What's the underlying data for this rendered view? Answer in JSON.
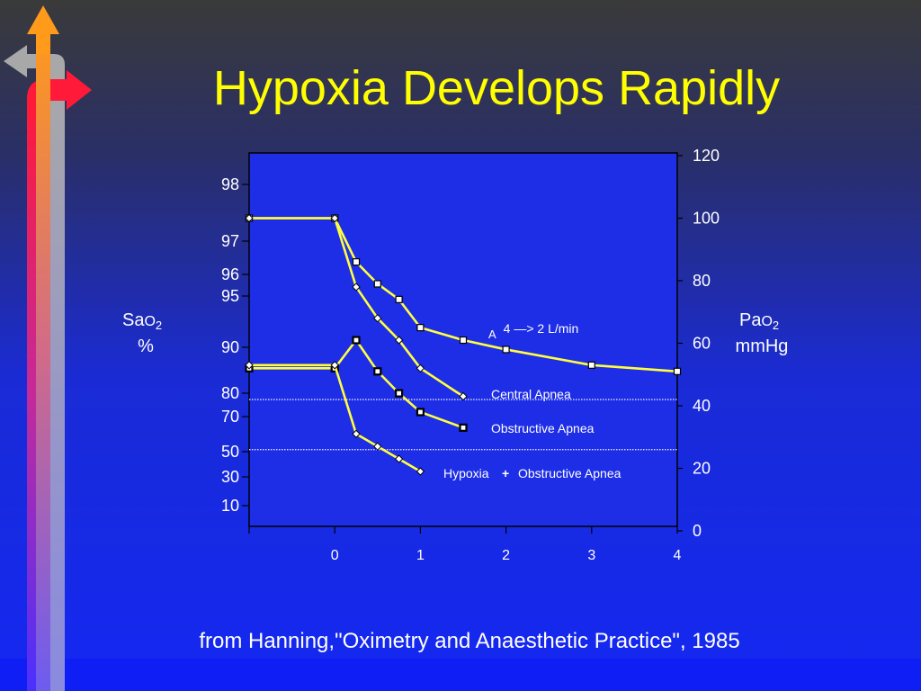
{
  "slide": {
    "title": "Hypoxia Develops Rapidly",
    "source": "from Hanning,\"Oximetry and Anaesthetic Practice\", 1985"
  },
  "colors": {
    "line": "#ffff40",
    "title": "#ffff00",
    "text": "#ffffff",
    "plot_bg": "#1e2ee6"
  },
  "chart_data": {
    "type": "line",
    "x_ticks": [
      "0",
      "1",
      "2",
      "3",
      "4"
    ],
    "x_range": [
      -1,
      4
    ],
    "left_axis": {
      "label_main": "Sa",
      "label_chem": "O",
      "label_sub": "2",
      "label_unit": "%",
      "ticks": [
        "98",
        "97",
        "96",
        "95",
        "90",
        "80",
        "70",
        "50",
        "30",
        "10"
      ]
    },
    "right_axis": {
      "label_main": "Pa",
      "label_chem": "O",
      "label_sub": "2",
      "label_unit": "mmHg",
      "range": [
        0,
        120
      ],
      "ticks": [
        "0",
        "20",
        "40",
        "60",
        "80",
        "100",
        "120"
      ]
    },
    "reference_lines": [
      42,
      26
    ],
    "annotations": {
      "ventilation_symbol": "",
      "ventilation_sub": "A",
      "ventilation_text": "4 —> 2 L/min",
      "central": "Central Apnea",
      "obstructive": "Obstructive Apnea",
      "hypoxia": "Hypoxia",
      "plus": "+",
      "hypoxia_obstructive": "Obstructive Apnea"
    },
    "series": [
      {
        "marker": "square",
        "x": [
          -1,
          0,
          0.25,
          0.5,
          0.75,
          1,
          1.5,
          2,
          3,
          4
        ],
        "y": [
          100,
          100,
          86,
          79,
          74,
          65,
          61,
          58,
          53,
          51
        ]
      },
      {
        "marker": "diamond",
        "x": [
          -1,
          0,
          0.25,
          0.5,
          0.75,
          1,
          1.5
        ],
        "y": [
          100,
          100,
          78,
          68,
          61,
          52,
          43
        ]
      },
      {
        "marker": "bowtie",
        "x": [
          -1,
          0,
          0.25,
          0.5,
          0.75,
          1,
          1.5
        ],
        "y": [
          52,
          52,
          61,
          51,
          44,
          38,
          33
        ]
      },
      {
        "marker": "diamond",
        "x": [
          -1,
          0,
          0.25,
          0.5,
          0.75,
          1
        ],
        "y": [
          53,
          53,
          31,
          27,
          23,
          19
        ]
      }
    ]
  }
}
